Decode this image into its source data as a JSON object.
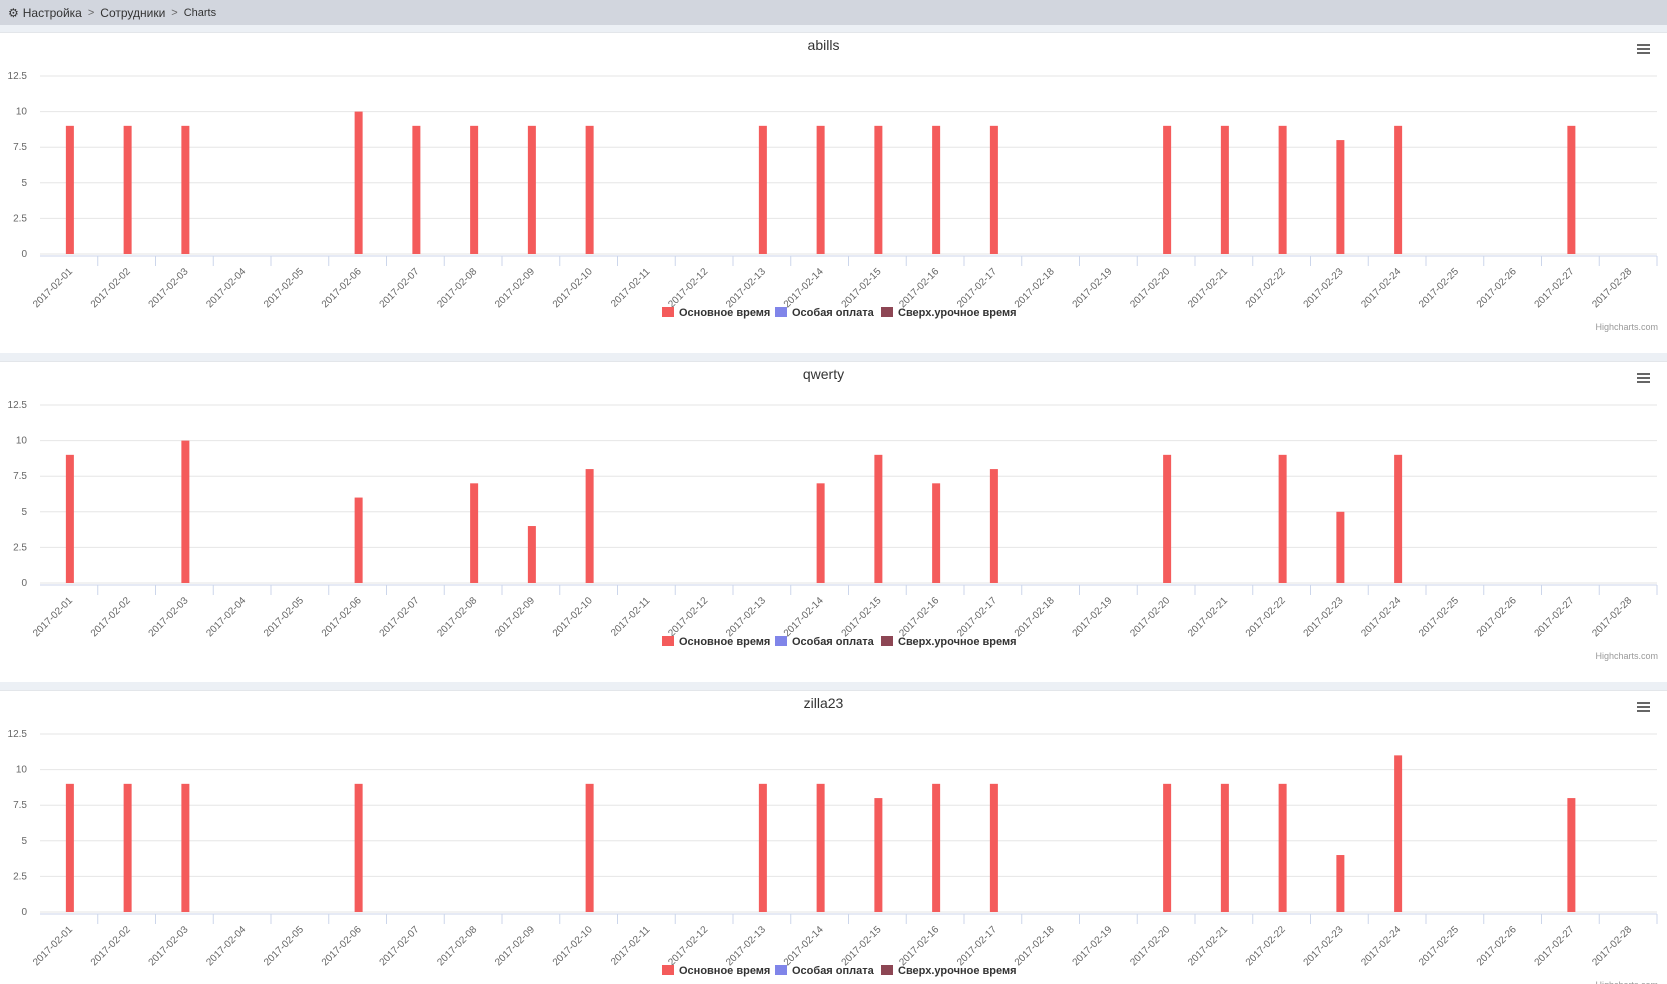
{
  "breadcrumb": {
    "items": [
      "Настройка",
      "Сотрудники",
      "Charts"
    ],
    "separator": ">",
    "icon": "gear-icon"
  },
  "credits": "Highcharts.com",
  "colors": {
    "series_main": "#f45b5b",
    "series_special": "#8085e9",
    "series_overtime": "#8d4654"
  },
  "chart_data": [
    {
      "type": "bar",
      "title": "abills",
      "categories": [
        "2017-02-01",
        "2017-02-02",
        "2017-02-03",
        "2017-02-04",
        "2017-02-05",
        "2017-02-06",
        "2017-02-07",
        "2017-02-08",
        "2017-02-09",
        "2017-02-10",
        "2017-02-11",
        "2017-02-12",
        "2017-02-13",
        "2017-02-14",
        "2017-02-15",
        "2017-02-16",
        "2017-02-17",
        "2017-02-18",
        "2017-02-19",
        "2017-02-20",
        "2017-02-21",
        "2017-02-22",
        "2017-02-23",
        "2017-02-24",
        "2017-02-25",
        "2017-02-26",
        "2017-02-27",
        "2017-02-28"
      ],
      "ylim": [
        0,
        12.5
      ],
      "yticks": [
        "0",
        "2.5",
        "5",
        "7.5",
        "10",
        "12.5"
      ],
      "grid": true,
      "legend_position": "bottom-center",
      "series": [
        {
          "name": "Основное время",
          "color": "#f45b5b",
          "values": [
            9,
            9,
            9,
            0,
            0,
            10,
            9,
            9,
            9,
            9,
            0,
            0,
            9,
            9,
            9,
            9,
            9,
            0,
            0,
            9,
            9,
            9,
            8,
            9,
            0,
            0,
            9,
            0
          ]
        },
        {
          "name": "Особая оплата",
          "color": "#8085e9",
          "values": [
            0,
            0,
            0,
            0,
            0,
            0,
            0,
            0,
            0,
            0,
            0,
            0,
            0,
            0,
            0,
            0,
            0,
            0,
            0,
            0,
            0,
            0,
            0,
            0,
            0,
            0,
            0,
            0
          ]
        },
        {
          "name": "Сверх.урочное время",
          "color": "#8d4654",
          "values": [
            0,
            0,
            0,
            0,
            0,
            0,
            0,
            0,
            0,
            0,
            0,
            0,
            0,
            0,
            0,
            0,
            0,
            0,
            0,
            0,
            0,
            0,
            0,
            0,
            0,
            0,
            0,
            0
          ]
        }
      ]
    },
    {
      "type": "bar",
      "title": "qwerty",
      "categories": [
        "2017-02-01",
        "2017-02-02",
        "2017-02-03",
        "2017-02-04",
        "2017-02-05",
        "2017-02-06",
        "2017-02-07",
        "2017-02-08",
        "2017-02-09",
        "2017-02-10",
        "2017-02-11",
        "2017-02-12",
        "2017-02-13",
        "2017-02-14",
        "2017-02-15",
        "2017-02-16",
        "2017-02-17",
        "2017-02-18",
        "2017-02-19",
        "2017-02-20",
        "2017-02-21",
        "2017-02-22",
        "2017-02-23",
        "2017-02-24",
        "2017-02-25",
        "2017-02-26",
        "2017-02-27",
        "2017-02-28"
      ],
      "ylim": [
        0,
        12.5
      ],
      "yticks": [
        "0",
        "2.5",
        "5",
        "7.5",
        "10",
        "12.5"
      ],
      "grid": true,
      "legend_position": "bottom-center",
      "series": [
        {
          "name": "Основное время",
          "color": "#f45b5b",
          "values": [
            9,
            0,
            10,
            0,
            0,
            6,
            0,
            7,
            4,
            8,
            0,
            0,
            0,
            7,
            9,
            7,
            8,
            0,
            0,
            9,
            0,
            9,
            5,
            9,
            0,
            0,
            0,
            0
          ]
        },
        {
          "name": "Особая оплата",
          "color": "#8085e9",
          "values": [
            0,
            0,
            0,
            0,
            0,
            0,
            0,
            0,
            0,
            0,
            0,
            0,
            0,
            0,
            0,
            0,
            0,
            0,
            0,
            0,
            0,
            0,
            0,
            0,
            0,
            0,
            0,
            0
          ]
        },
        {
          "name": "Сверх.урочное время",
          "color": "#8d4654",
          "values": [
            0,
            0,
            0,
            0,
            0,
            0,
            0,
            0,
            0,
            0,
            0,
            0,
            0,
            0,
            0,
            0,
            0,
            0,
            0,
            0,
            0,
            0,
            0,
            0,
            0,
            0,
            0,
            0
          ]
        }
      ]
    },
    {
      "type": "bar",
      "title": "zilla23",
      "categories": [
        "2017-02-01",
        "2017-02-02",
        "2017-02-03",
        "2017-02-04",
        "2017-02-05",
        "2017-02-06",
        "2017-02-07",
        "2017-02-08",
        "2017-02-09",
        "2017-02-10",
        "2017-02-11",
        "2017-02-12",
        "2017-02-13",
        "2017-02-14",
        "2017-02-15",
        "2017-02-16",
        "2017-02-17",
        "2017-02-18",
        "2017-02-19",
        "2017-02-20",
        "2017-02-21",
        "2017-02-22",
        "2017-02-23",
        "2017-02-24",
        "2017-02-25",
        "2017-02-26",
        "2017-02-27",
        "2017-02-28"
      ],
      "ylim": [
        0,
        12.5
      ],
      "yticks": [
        "0",
        "2.5",
        "5",
        "7.5",
        "10",
        "12.5"
      ],
      "grid": true,
      "legend_position": "bottom-center",
      "series": [
        {
          "name": "Основное время",
          "color": "#f45b5b",
          "values": [
            9,
            9,
            9,
            0,
            0,
            9,
            0,
            0,
            0,
            9,
            0,
            0,
            9,
            9,
            8,
            9,
            9,
            0,
            0,
            9,
            9,
            9,
            4,
            11,
            0,
            0,
            8,
            0
          ]
        },
        {
          "name": "Особая оплата",
          "color": "#8085e9",
          "values": [
            0,
            0,
            0,
            0,
            0,
            0,
            0,
            0,
            0,
            0,
            0,
            0,
            0,
            0,
            0,
            0,
            0,
            0,
            0,
            0,
            0,
            0,
            0,
            0,
            0,
            0,
            0,
            0
          ]
        },
        {
          "name": "Сверх.урочное время",
          "color": "#8d4654",
          "values": [
            0,
            0,
            0,
            0,
            0,
            0,
            0,
            0,
            0,
            0,
            0,
            0,
            0,
            0,
            0,
            0,
            0,
            0,
            0,
            0,
            0,
            0,
            0,
            0,
            0,
            0,
            0,
            0
          ]
        }
      ]
    }
  ]
}
